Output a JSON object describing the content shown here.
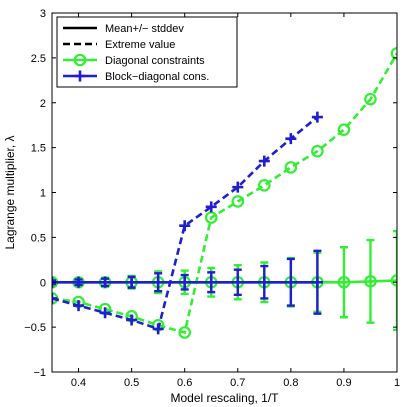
{
  "chart_data": {
    "type": "line",
    "xlabel": "Model rescaling, 1/T",
    "ylabel": "Lagrange multiplier, λ",
    "xlim": [
      0.35,
      1.0
    ],
    "ylim": [
      -1,
      3
    ],
    "xticks": [
      "0.4",
      "0.5",
      "0.6",
      "0.7",
      "0.8",
      "0.9",
      "1"
    ],
    "xtick_values": [
      0.4,
      0.5,
      0.6,
      0.7,
      0.8,
      0.9,
      1.0
    ],
    "yticks": [
      "−1",
      "−0.5",
      "0",
      "0.5",
      "1",
      "1.5",
      "2",
      "2.5",
      "3"
    ],
    "ytick_values": [
      -1,
      -0.5,
      0,
      0.5,
      1,
      1.5,
      2,
      2.5,
      3
    ],
    "grid": false,
    "legend_position": "top-left",
    "legend": [
      {
        "label": "Mean+/− stddev",
        "style": "solid",
        "color": "#000000",
        "marker": "none"
      },
      {
        "label": "Extreme value",
        "style": "dashed",
        "color": "#000000",
        "marker": "none"
      },
      {
        "label": "Diagonal constraints",
        "style": "solid",
        "color": "#33ee33",
        "marker": "circle"
      },
      {
        "label": "Block−diagonal cons.",
        "style": "solid",
        "color": "#1f1fd0",
        "marker": "plus"
      }
    ],
    "series": [
      {
        "name": "Diagonal constraints",
        "color": "#33ee33",
        "marker": "circle",
        "mean": {
          "x": [
            0.35,
            0.4,
            0.45,
            0.5,
            0.55,
            0.6,
            0.65,
            0.7,
            0.75,
            0.8,
            0.85,
            0.9,
            0.95,
            1.0
          ],
          "y": [
            0.0,
            0.0,
            0.0,
            0.0,
            0.0,
            0.0,
            0.0,
            0.0,
            0.0,
            0.0,
            0.0,
            0.0,
            0.01,
            0.02
          ],
          "std": [
            0.03,
            0.04,
            0.05,
            0.07,
            0.12,
            0.13,
            0.16,
            0.19,
            0.22,
            0.27,
            0.33,
            0.39,
            0.46,
            0.55
          ]
        },
        "extreme": {
          "x": [
            0.35,
            0.4,
            0.45,
            0.5,
            0.55,
            0.6,
            0.65,
            0.7,
            0.75,
            0.8,
            0.85,
            0.9,
            0.95,
            1.0
          ],
          "y": [
            -0.18,
            -0.22,
            -0.3,
            -0.38,
            -0.48,
            -0.56,
            0.72,
            0.9,
            1.08,
            1.28,
            1.46,
            1.7,
            2.04,
            2.55
          ]
        }
      },
      {
        "name": "Block−diagonal cons.",
        "color": "#1f1fd0",
        "marker": "plus",
        "mean": {
          "x": [
            0.35,
            0.4,
            0.45,
            0.5,
            0.55,
            0.6,
            0.65,
            0.7,
            0.75,
            0.8,
            0.85
          ],
          "y": [
            0.0,
            0.0,
            0.0,
            0.0,
            0.0,
            0.0,
            0.0,
            0.0,
            0.0,
            0.0,
            0.0
          ],
          "std": [
            0.02,
            0.03,
            0.04,
            0.06,
            0.1,
            0.08,
            0.11,
            0.14,
            0.18,
            0.26,
            0.35
          ]
        },
        "extreme": {
          "x": [
            0.35,
            0.4,
            0.45,
            0.5,
            0.55,
            0.6,
            0.65,
            0.7,
            0.75,
            0.8,
            0.85
          ],
          "y": [
            -0.18,
            -0.26,
            -0.34,
            -0.42,
            -0.52,
            0.63,
            0.84,
            1.06,
            1.35,
            1.6,
            1.84
          ]
        }
      }
    ]
  }
}
